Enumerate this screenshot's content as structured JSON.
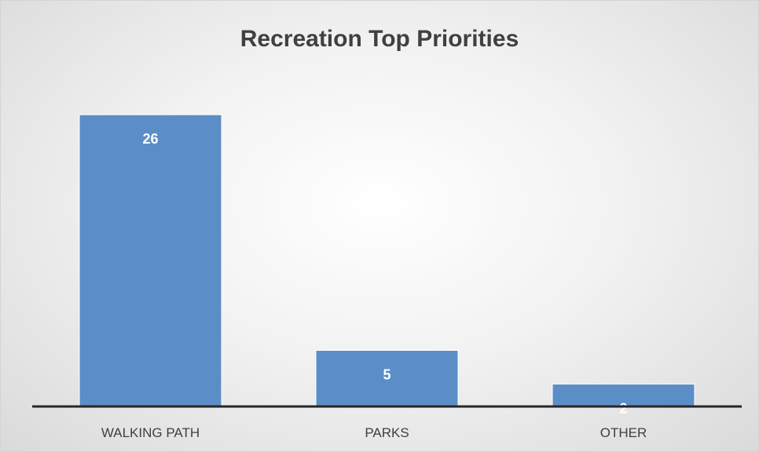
{
  "chart_data": {
    "type": "bar",
    "title": "Recreation Top Priorities",
    "categories": [
      "WALKING PATH",
      "PARKS",
      "OTHER"
    ],
    "values": [
      26,
      5,
      2
    ],
    "data_labels": [
      "26",
      "5",
      "2"
    ],
    "xlabel": "",
    "ylabel": "",
    "ylim": [
      0,
      30
    ],
    "grid": false,
    "legend": "none",
    "colors": {
      "bar_fill": "#5b8ec7",
      "bar_stroke": "#ffffff",
      "axis": "#262626",
      "data_label": "#ffffff",
      "tick_label": "#404040",
      "title": "#404040"
    }
  }
}
